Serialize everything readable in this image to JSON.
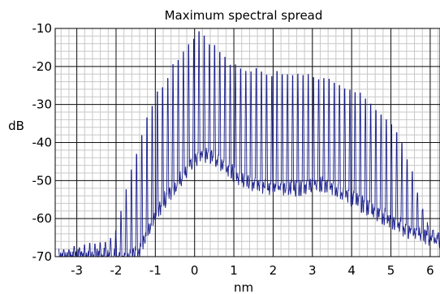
{
  "chart_data": {
    "type": "line",
    "title": "Maximum spectral spread",
    "xlabel": "nm",
    "ylabel": "dB",
    "xlim": [
      -3.55,
      6.25
    ],
    "ylim": [
      -70,
      -10
    ],
    "xticks": [
      -3,
      -2,
      -1,
      0,
      1,
      2,
      3,
      4,
      5,
      6
    ],
    "yticks": [
      -10,
      -20,
      -30,
      -40,
      -50,
      -60,
      -70
    ],
    "grid": "on",
    "line_color": "#1a1f8c",
    "series": [
      {
        "style": "comb spectrum, peak envelope",
        "x": [
          -3.5,
          -2.5,
          -2.05,
          -1.9,
          -1.75,
          -1.5,
          -1.25,
          -1.0,
          -0.75,
          -0.5,
          -0.25,
          0.0,
          0.15,
          0.4,
          0.7,
          1.0,
          1.5,
          2.0,
          2.5,
          3.0,
          3.5,
          4.0,
          4.5,
          5.0,
          5.3,
          5.6,
          5.9,
          6.2
        ],
        "y": [
          -68,
          -67,
          -64,
          -59,
          -52,
          -43,
          -35,
          -28,
          -24,
          -19,
          -15,
          -12,
          -11,
          -14,
          -17,
          -20,
          -21,
          -22,
          -22,
          -23,
          -24,
          -26,
          -30,
          -35,
          -41,
          -50,
          -61,
          -64
        ]
      },
      {
        "style": "comb spectrum, floor envelope",
        "x": [
          -3.5,
          -2.5,
          -2.05,
          -1.9,
          -1.75,
          -1.5,
          -1.25,
          -1.0,
          -0.75,
          -0.5,
          -0.25,
          0.0,
          0.15,
          0.4,
          0.7,
          1.0,
          1.5,
          2.0,
          2.5,
          3.0,
          3.5,
          4.0,
          4.5,
          5.0,
          5.3,
          5.6,
          5.9,
          6.2
        ],
        "y": [
          -70,
          -70,
          -70,
          -70,
          -70,
          -69,
          -64,
          -58,
          -54,
          -51,
          -47,
          -44,
          -43,
          -44,
          -46,
          -49,
          -51,
          -52,
          -52,
          -51,
          -52,
          -55,
          -58,
          -61,
          -63,
          -64,
          -65,
          -66
        ]
      }
    ]
  }
}
